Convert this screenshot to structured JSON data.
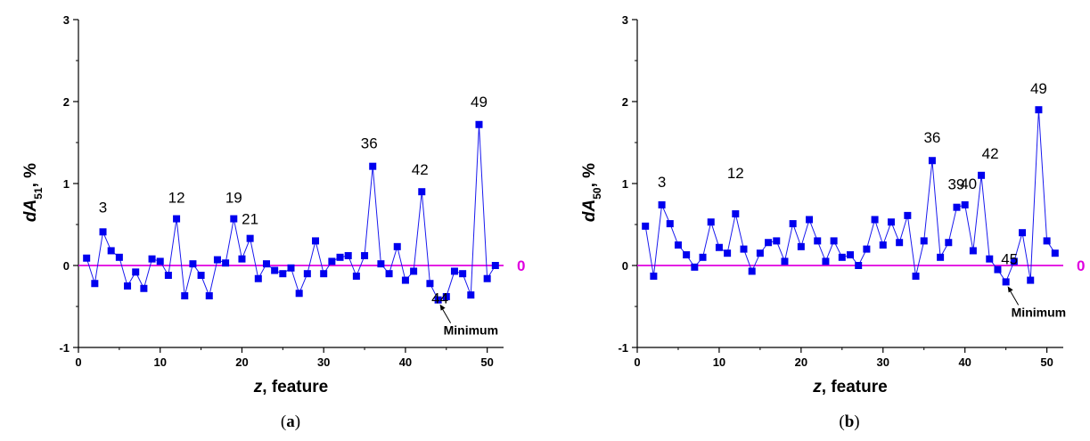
{
  "colors": {
    "series": "#1a1aee",
    "marker": "#0000ee",
    "zero_line": "#e000e0",
    "axis": "#000000"
  },
  "chart_data": [
    {
      "type": "line",
      "caption": {
        "open": "(",
        "letter": "a",
        "close": ")"
      },
      "xlabel": {
        "var": "z",
        "rest": ", feature"
      },
      "ylabel": {
        "main": "dA",
        "sub": "51",
        "rest": ", %"
      },
      "xlim": [
        0,
        52
      ],
      "ylim": [
        -1,
        3
      ],
      "xticks": [
        0,
        10,
        20,
        30,
        40,
        50
      ],
      "yticks": [
        -1,
        0,
        1,
        2,
        3
      ],
      "zero_line": {
        "y": 0,
        "label": "0"
      },
      "x": [
        1,
        2,
        3,
        4,
        5,
        6,
        7,
        8,
        9,
        10,
        11,
        12,
        13,
        14,
        15,
        16,
        17,
        18,
        19,
        20,
        21,
        22,
        23,
        24,
        25,
        26,
        27,
        28,
        29,
        30,
        31,
        32,
        33,
        34,
        35,
        36,
        37,
        38,
        39,
        40,
        41,
        42,
        43,
        44,
        45,
        46,
        47,
        48,
        49,
        50,
        51
      ],
      "y": [
        0.09,
        -0.22,
        0.41,
        0.18,
        0.1,
        -0.25,
        -0.08,
        -0.28,
        0.08,
        0.05,
        -0.12,
        0.57,
        -0.37,
        0.02,
        -0.12,
        -0.37,
        0.07,
        0.03,
        0.57,
        0.08,
        0.33,
        -0.16,
        0.02,
        -0.06,
        -0.1,
        -0.03,
        -0.34,
        -0.1,
        0.3,
        -0.1,
        0.05,
        0.1,
        0.12,
        -0.13,
        0.12,
        1.21,
        0.02,
        -0.1,
        0.23,
        -0.18,
        -0.07,
        0.9,
        -0.22,
        -0.42,
        -0.38,
        -0.07,
        -0.1,
        -0.36,
        1.72,
        -0.16,
        0.0
      ],
      "point_labels": [
        {
          "text": "3",
          "x": 3
        },
        {
          "text": "12",
          "x": 12
        },
        {
          "text": "19",
          "x": 19
        },
        {
          "text": "21",
          "x": 21
        },
        {
          "text": "36",
          "x": 36
        },
        {
          "text": "42",
          "x": 42
        },
        {
          "text": "44",
          "x": 44
        },
        {
          "text": "49",
          "x": 49
        }
      ],
      "minimum": {
        "text": "Minimum",
        "x": 44
      }
    },
    {
      "type": "line",
      "caption": {
        "open": "(",
        "letter": "b",
        "close": ")"
      },
      "xlabel": {
        "var": "z",
        "rest": ", feature"
      },
      "ylabel": {
        "main": "dA",
        "sub": "50",
        "rest": ", %"
      },
      "xlim": [
        0,
        52
      ],
      "ylim": [
        -1,
        3
      ],
      "xticks": [
        0,
        10,
        20,
        30,
        40,
        50
      ],
      "yticks": [
        -1,
        0,
        1,
        2,
        3
      ],
      "zero_line": {
        "y": 0,
        "label": "0"
      },
      "x": [
        1,
        2,
        3,
        4,
        5,
        6,
        7,
        8,
        9,
        10,
        11,
        12,
        13,
        14,
        15,
        16,
        17,
        18,
        19,
        20,
        21,
        22,
        23,
        24,
        25,
        26,
        27,
        28,
        29,
        30,
        31,
        32,
        33,
        34,
        35,
        36,
        37,
        38,
        39,
        40,
        41,
        42,
        43,
        44,
        45,
        46,
        47,
        48,
        49,
        50,
        51
      ],
      "y": [
        0.48,
        -0.13,
        0.74,
        0.51,
        0.25,
        0.13,
        -0.02,
        0.1,
        0.53,
        0.22,
        0.15,
        0.63,
        0.2,
        -0.07,
        0.15,
        0.28,
        0.3,
        0.05,
        0.51,
        0.23,
        0.56,
        0.3,
        0.05,
        0.3,
        0.1,
        0.13,
        0.0,
        0.2,
        0.56,
        0.25,
        0.53,
        0.28,
        0.61,
        -0.13,
        0.3,
        1.28,
        0.1,
        0.28,
        0.71,
        0.74,
        0.18,
        1.1,
        0.08,
        -0.05,
        -0.2,
        0.05,
        0.4,
        -0.18,
        1.9,
        0.3,
        0.15
      ],
      "point_labels": [
        {
          "text": "3",
          "x": 3
        },
        {
          "text": "12",
          "x": 12
        },
        {
          "text": "36",
          "x": 36
        },
        {
          "text": "39",
          "x": 38.5
        },
        {
          "text": "40",
          "x": 40
        },
        {
          "text": "42",
          "x": 42
        },
        {
          "text": "45",
          "x": 45
        },
        {
          "text": "49",
          "x": 49
        }
      ],
      "minimum": {
        "text": "Minimum",
        "x": 45
      }
    }
  ]
}
